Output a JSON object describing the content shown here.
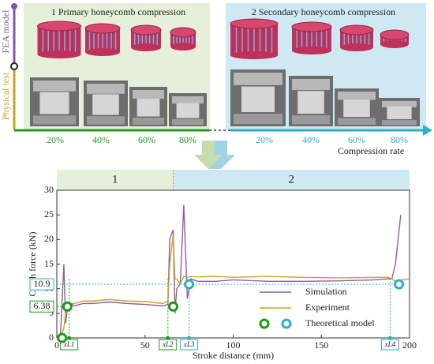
{
  "top": {
    "side_labels": [
      "FEA model",
      "Physical test"
    ],
    "panels": [
      {
        "title": "1 Primary honeycomb compression",
        "rates": [
          "20%",
          "40%",
          "60%",
          "80%"
        ]
      },
      {
        "title": "2 Secondary honeycomb compression",
        "rates": [
          "20%",
          "40%",
          "60%",
          "80%"
        ]
      }
    ],
    "axis_label": "Compression rate"
  },
  "chart_data": {
    "type": "line",
    "x_label": "Stroke distance (mm)",
    "y_label": "Crush force (kN)",
    "xlim": [
      0,
      200
    ],
    "xticks": [
      0,
      50,
      100,
      150,
      200
    ],
    "ylim": [
      0,
      30
    ],
    "yticks": [
      0,
      5,
      10,
      15,
      20,
      25,
      30
    ],
    "regions": [
      {
        "label": "1",
        "range": [
          0,
          66
        ],
        "color": "#e6efd9"
      },
      {
        "label": "2",
        "range": [
          66,
          200
        ],
        "color": "#cfe9f2"
      }
    ],
    "x": [
      0,
      2,
      4,
      5,
      6,
      8,
      10,
      15,
      20,
      30,
      40,
      50,
      60,
      63,
      64,
      66,
      67,
      68,
      70,
      72,
      74,
      76,
      80,
      90,
      100,
      120,
      140,
      160,
      180,
      188,
      190,
      192,
      195,
      200
    ],
    "series": [
      {
        "name": "Simulation",
        "color": "#8e5ea2",
        "values": [
          0,
          0,
          15,
          3,
          6,
          7,
          6.5,
          7,
          7,
          7.3,
          7,
          6.8,
          6.5,
          6.8,
          20,
          22,
          5,
          10,
          11,
          27,
          8,
          12,
          11.5,
          11.5,
          11.8,
          11.5,
          11.5,
          11.6,
          11.8,
          12,
          12,
          15,
          25,
          null
        ]
      },
      {
        "name": "Experiment",
        "color": "#c9a227",
        "values": [
          0,
          0,
          2,
          5,
          6.5,
          7,
          7,
          7.5,
          7.5,
          7.8,
          7.5,
          7.4,
          7,
          7.5,
          15,
          21,
          12,
          12,
          11,
          12.5,
          12.3,
          12.5,
          12.4,
          12.5,
          12.3,
          12.5,
          12.3,
          12.2,
          12.3,
          12.3,
          12,
          11.5,
          11.8,
          12
        ]
      }
    ],
    "theoretical": {
      "name": "Theoretical model",
      "groups": [
        {
          "color": "#1a9e1a",
          "x": [
            3,
            6,
            66
          ],
          "y": [
            0,
            6.38,
            6.38
          ]
        },
        {
          "color": "#2ab0c8",
          "x": [
            75,
            194
          ],
          "y": [
            10.9,
            10.9
          ]
        }
      ]
    },
    "force_labels": [
      {
        "label": "10.9",
        "y": 10.9,
        "x": 194,
        "color": "#2ab0c8"
      },
      {
        "label": "6.38",
        "y": 6.38,
        "x": 6,
        "color": "#1a9e1a"
      }
    ],
    "x_markers": [
      {
        "label": "xL1",
        "x": 7,
        "color": "#1a9e1a"
      },
      {
        "label": "xL2",
        "x": 63,
        "color": "#1a9e1a"
      },
      {
        "label": "xL3",
        "x": 75,
        "color": "#2ab0c8"
      },
      {
        "label": "xL4",
        "x": 189,
        "color": "#2ab0c8"
      }
    ],
    "legend": "lower right"
  }
}
